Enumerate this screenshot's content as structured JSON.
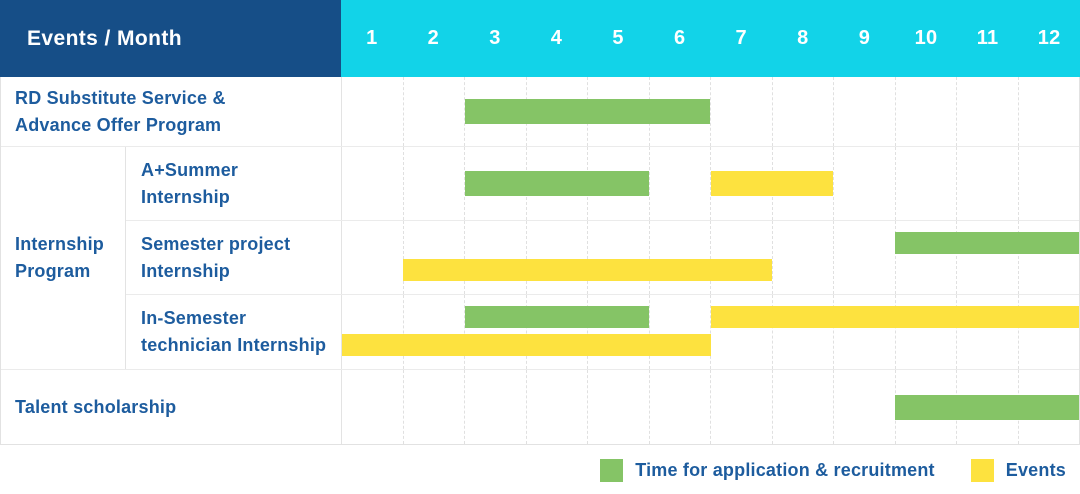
{
  "colors": {
    "corner_bg": "#164e87",
    "month_header_bg": "#12d3e8",
    "application_bar": "#85c466",
    "event_bar": "#fde23f",
    "label_text": "#1d5c9e",
    "header_text": "#ffffff"
  },
  "table": {
    "corner_title": "Events / Month",
    "months": [
      "1",
      "2",
      "3",
      "4",
      "5",
      "6",
      "7",
      "8",
      "9",
      "10",
      "11",
      "12"
    ]
  },
  "legend": {
    "items": [
      {
        "label": "Time for application & recruitment",
        "type": "application"
      },
      {
        "label": "Events",
        "type": "event"
      }
    ]
  },
  "chart_data": {
    "type": "gantt",
    "x_axis": {
      "unit": "month",
      "ticks": [
        "1",
        "2",
        "3",
        "4",
        "5",
        "6",
        "7",
        "8",
        "9",
        "10",
        "11",
        "12"
      ],
      "range": [
        1,
        12
      ]
    },
    "series": [
      {
        "name": "Time for application & recruitment",
        "key": "application",
        "color": "#85c466"
      },
      {
        "name": "Events",
        "key": "event",
        "color": "#fde23f"
      }
    ],
    "rows": [
      {
        "group": null,
        "label": "RD Substitute Service & Advance Offer Program",
        "label_lines": [
          "RD Substitute Service &",
          "Advance Offer Program"
        ],
        "bars": [
          {
            "series": "application",
            "start_month": 3,
            "end_month": 6,
            "lane": "center"
          }
        ]
      },
      {
        "group": "Internship Program",
        "group_lines": [
          "Internship",
          "Program"
        ],
        "label": "A+Summer Internship",
        "label_lines": [
          "A+Summer",
          "Internship"
        ],
        "bars": [
          {
            "series": "application",
            "start_month": 3,
            "end_month": 5,
            "lane": "center"
          },
          {
            "series": "event",
            "start_month": 7,
            "end_month": 8,
            "lane": "center"
          }
        ]
      },
      {
        "group": "Internship Program",
        "label": "Semester project Internship",
        "label_lines": [
          "Semester project",
          "Internship"
        ],
        "bars": [
          {
            "series": "application",
            "start_month": 10,
            "end_month": 12,
            "lane": "top"
          },
          {
            "series": "event",
            "start_month": 2,
            "end_month": 7,
            "lane": "bottom"
          }
        ]
      },
      {
        "group": "Internship Program",
        "label": "In-Semester technician Internship",
        "label_lines": [
          "In-Semester",
          "technician Internship"
        ],
        "bars": [
          {
            "series": "application",
            "start_month": 3,
            "end_month": 5,
            "lane": "top"
          },
          {
            "series": "event",
            "start_month": 7,
            "end_month": 12,
            "lane": "top"
          },
          {
            "series": "event",
            "start_month": 1,
            "end_month": 6,
            "lane": "bottom"
          }
        ]
      },
      {
        "group": null,
        "label": "Talent scholarship",
        "label_lines": [
          "Talent scholarship"
        ],
        "bars": [
          {
            "series": "application",
            "start_month": 10,
            "end_month": 12,
            "lane": "center"
          }
        ]
      }
    ]
  }
}
